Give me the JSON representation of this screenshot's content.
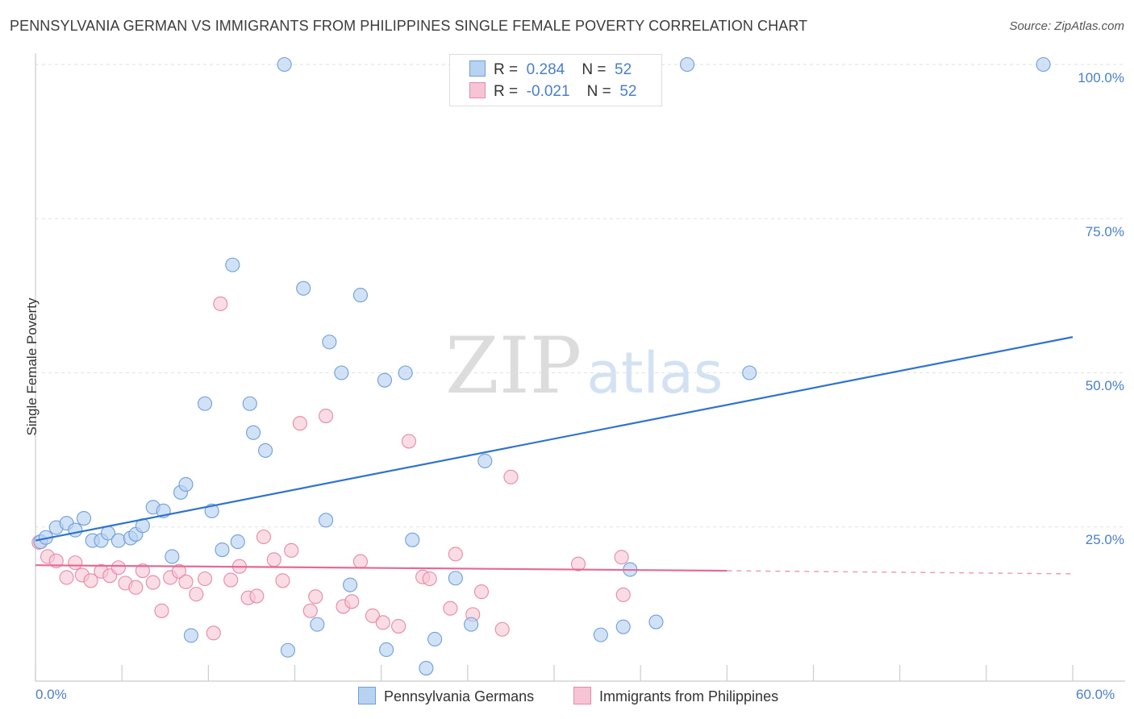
{
  "title": "PENNSYLVANIA GERMAN VS IMMIGRANTS FROM PHILIPPINES SINGLE FEMALE POVERTY CORRELATION CHART",
  "source": "Source: ZipAtlas.com",
  "watermark": {
    "part1": "ZIP",
    "part2": "atlas"
  },
  "legend": {
    "rows": [
      {
        "r_label": "R =",
        "r_value": "0.284",
        "n_label": "N =",
        "n_value": "52"
      },
      {
        "r_label": "R =",
        "r_value": "-0.021",
        "n_label": "N =",
        "n_value": "52"
      }
    ]
  },
  "bottom_legend": {
    "series1": "Pennsylvania Germans",
    "series2": "Immigrants from Philippines"
  },
  "colors": {
    "blue_fill": "#b8d2f2",
    "blue_stroke": "#6f9fd8",
    "blue_line": "#2f73cf",
    "pink_fill": "#f6c4d4",
    "pink_stroke": "#e58aa8",
    "pink_line": "#e56a95",
    "tick_text": "#4a7fc8"
  },
  "chart_data": {
    "type": "scatter",
    "title": "PENNSYLVANIA GERMAN VS IMMIGRANTS FROM PHILIPPINES SINGLE FEMALE POVERTY CORRELATION CHART",
    "xlabel": "",
    "ylabel": "Single Female Poverty",
    "xlim": [
      0,
      60
    ],
    "ylim": [
      0,
      100
    ],
    "x_tick_labels": [
      "0.0%",
      "60.0%"
    ],
    "y_tick_labels": [
      "25.0%",
      "50.0%",
      "75.0%",
      "100.0%"
    ],
    "y_ticks": [
      25,
      50,
      75,
      100
    ],
    "series": [
      {
        "name": "Pennsylvania Germans",
        "R": 0.284,
        "N": 52,
        "trend": {
          "x0": 0,
          "y0": 22.8,
          "x1": 60,
          "y1": 55.8
        },
        "points": [
          [
            0.3,
            22.6
          ],
          [
            0.6,
            23.3
          ],
          [
            1.2,
            24.9
          ],
          [
            1.8,
            25.6
          ],
          [
            2.3,
            24.5
          ],
          [
            2.8,
            26.4
          ],
          [
            3.3,
            22.8
          ],
          [
            3.8,
            22.8
          ],
          [
            4.2,
            24.0
          ],
          [
            4.8,
            22.8
          ],
          [
            5.5,
            23.2
          ],
          [
            5.8,
            23.8
          ],
          [
            6.2,
            25.2
          ],
          [
            6.8,
            28.2
          ],
          [
            7.4,
            27.6
          ],
          [
            7.9,
            20.2
          ],
          [
            8.4,
            30.6
          ],
          [
            8.7,
            31.9
          ],
          [
            9.0,
            7.4
          ],
          [
            9.8,
            45.0
          ],
          [
            10.2,
            27.6
          ],
          [
            10.8,
            21.3
          ],
          [
            11.4,
            67.5
          ],
          [
            11.7,
            22.6
          ],
          [
            12.4,
            45.0
          ],
          [
            12.6,
            40.3
          ],
          [
            13.3,
            37.4
          ],
          [
            14.4,
            100.0
          ],
          [
            14.6,
            5.0
          ],
          [
            15.5,
            63.7
          ],
          [
            16.3,
            9.2
          ],
          [
            16.8,
            26.1
          ],
          [
            17.0,
            55.0
          ],
          [
            17.7,
            50.0
          ],
          [
            18.2,
            15.6
          ],
          [
            18.8,
            62.6
          ],
          [
            20.2,
            48.8
          ],
          [
            20.3,
            5.1
          ],
          [
            21.4,
            50.0
          ],
          [
            21.8,
            22.9
          ],
          [
            22.6,
            2.1
          ],
          [
            23.1,
            6.8
          ],
          [
            24.3,
            16.7
          ],
          [
            25.2,
            9.2
          ],
          [
            26.0,
            35.7
          ],
          [
            37.7,
            100.0
          ],
          [
            32.7,
            7.5
          ],
          [
            34.0,
            8.8
          ],
          [
            34.4,
            18.1
          ],
          [
            35.9,
            9.6
          ],
          [
            41.3,
            50.0
          ],
          [
            58.3,
            100.0
          ]
        ]
      },
      {
        "name": "Immigrants from Philippines",
        "R": -0.021,
        "N": 52,
        "trend": {
          "x0": 0,
          "y0": 18.8,
          "x1": 40,
          "y1": 17.9
        },
        "trend_dashed": {
          "x0": 40,
          "y0": 17.9,
          "x1": 60,
          "y1": 17.4
        },
        "points": [
          [
            0.2,
            22.5
          ],
          [
            0.7,
            20.2
          ],
          [
            1.2,
            19.5
          ],
          [
            1.8,
            16.8
          ],
          [
            2.3,
            19.2
          ],
          [
            2.7,
            17.2
          ],
          [
            3.2,
            16.3
          ],
          [
            3.8,
            17.8
          ],
          [
            4.3,
            17.1
          ],
          [
            4.8,
            18.4
          ],
          [
            5.2,
            15.9
          ],
          [
            5.8,
            15.2
          ],
          [
            6.2,
            17.9
          ],
          [
            6.8,
            16.0
          ],
          [
            7.3,
            11.4
          ],
          [
            7.8,
            16.8
          ],
          [
            8.3,
            17.8
          ],
          [
            8.7,
            16.1
          ],
          [
            9.3,
            14.1
          ],
          [
            9.8,
            16.6
          ],
          [
            10.3,
            7.8
          ],
          [
            10.7,
            61.2
          ],
          [
            11.3,
            16.4
          ],
          [
            11.8,
            18.6
          ],
          [
            12.3,
            13.5
          ],
          [
            12.8,
            13.8
          ],
          [
            13.2,
            23.4
          ],
          [
            13.8,
            19.7
          ],
          [
            14.3,
            16.3
          ],
          [
            14.8,
            21.2
          ],
          [
            15.3,
            41.8
          ],
          [
            15.9,
            11.4
          ],
          [
            16.2,
            13.7
          ],
          [
            16.8,
            43.0
          ],
          [
            17.8,
            12.1
          ],
          [
            18.8,
            19.4
          ],
          [
            18.3,
            12.9
          ],
          [
            19.5,
            10.6
          ],
          [
            20.1,
            9.5
          ],
          [
            21.0,
            8.9
          ],
          [
            21.6,
            38.9
          ],
          [
            22.4,
            16.9
          ],
          [
            22.8,
            16.6
          ],
          [
            24.0,
            11.8
          ],
          [
            24.3,
            20.6
          ],
          [
            25.3,
            10.8
          ],
          [
            25.8,
            14.5
          ],
          [
            27.0,
            8.4
          ],
          [
            27.5,
            33.1
          ],
          [
            31.4,
            19.0
          ],
          [
            33.9,
            20.1
          ],
          [
            34.0,
            14.0
          ]
        ]
      }
    ],
    "legend_position": "top-center",
    "grid": true
  }
}
